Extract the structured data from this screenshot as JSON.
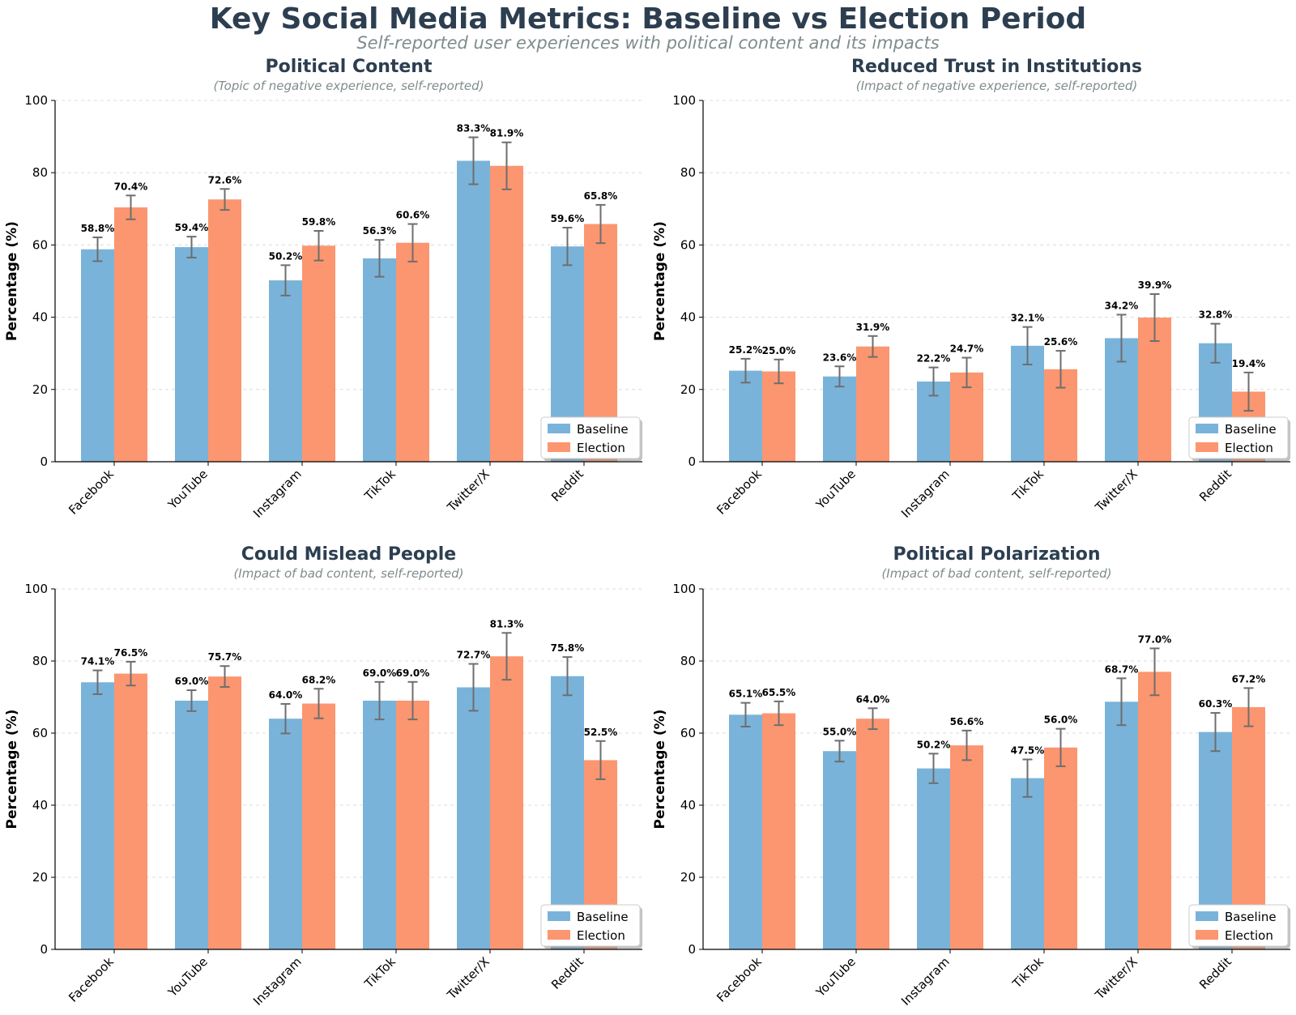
{
  "title": "Key Social Media Metrics: Baseline vs Election Period",
  "subtitle": "Self-reported user experiences with political content and its impacts",
  "colors": {
    "baseline": "#7ab3d9",
    "election": "#fb9670",
    "error_bar": "#6e6e6e",
    "grid": "#dcdcdc",
    "title": "#2c3e50",
    "note": "#7f8c8d"
  },
  "chart_data": [
    {
      "type": "bar",
      "title": "Political Content",
      "subtitle": "(Topic of negative experience, self-reported)",
      "categories": [
        "Facebook",
        "YouTube",
        "Instagram",
        "TikTok",
        "Twitter/X",
        "Reddit"
      ],
      "series": [
        {
          "name": "Baseline",
          "values": [
            58.8,
            59.4,
            50.2,
            56.3,
            83.3,
            59.6
          ],
          "errors": [
            3.3,
            2.9,
            4.2,
            5.1,
            6.5,
            5.2
          ]
        },
        {
          "name": "Election",
          "values": [
            70.4,
            72.6,
            59.8,
            60.6,
            81.9,
            65.8
          ],
          "errors": [
            3.3,
            2.9,
            4.1,
            5.2,
            6.5,
            5.3
          ]
        }
      ],
      "data_labels": [
        [
          "58.8%",
          "59.4%",
          "50.2%",
          "56.3%",
          "83.3%",
          "59.6%"
        ],
        [
          "70.4%",
          "72.6%",
          "59.8%",
          "60.6%",
          "81.9%",
          "65.8%"
        ]
      ],
      "ylabel": "Percentage (%)",
      "ylim": [
        0,
        100
      ],
      "yticks": [
        "0",
        "20",
        "40",
        "60",
        "80",
        "100"
      ],
      "grid": true,
      "legend": "bottom-right"
    },
    {
      "type": "bar",
      "title": "Reduced Trust in Institutions",
      "subtitle": "(Impact of negative experience, self-reported)",
      "categories": [
        "Facebook",
        "YouTube",
        "Instagram",
        "TikTok",
        "Twitter/X",
        "Reddit"
      ],
      "series": [
        {
          "name": "Baseline",
          "values": [
            25.2,
            23.6,
            22.2,
            32.1,
            34.2,
            32.8
          ],
          "errors": [
            3.3,
            2.8,
            3.9,
            5.2,
            6.5,
            5.4
          ]
        },
        {
          "name": "Election",
          "values": [
            25.0,
            31.9,
            24.7,
            25.6,
            39.9,
            19.4
          ],
          "errors": [
            3.3,
            2.9,
            4.1,
            5.1,
            6.5,
            5.3
          ]
        }
      ],
      "data_labels": [
        [
          "25.2%",
          "23.6%",
          "22.2%",
          "32.1%",
          "34.2%",
          "32.8%"
        ],
        [
          "25.0%",
          "31.9%",
          "24.7%",
          "25.6%",
          "39.9%",
          "19.4%"
        ]
      ],
      "ylabel": "Percentage (%)",
      "ylim": [
        0,
        100
      ],
      "yticks": [
        "0",
        "20",
        "40",
        "60",
        "80",
        "100"
      ],
      "grid": true,
      "legend": "bottom-right"
    },
    {
      "type": "bar",
      "title": "Could Mislead People",
      "subtitle": "(Impact of bad content, self-reported)",
      "categories": [
        "Facebook",
        "YouTube",
        "Instagram",
        "TikTok",
        "Twitter/X",
        "Reddit"
      ],
      "series": [
        {
          "name": "Baseline",
          "values": [
            74.1,
            69.0,
            64.0,
            69.0,
            72.7,
            75.8
          ],
          "errors": [
            3.3,
            2.9,
            4.1,
            5.2,
            6.5,
            5.3
          ]
        },
        {
          "name": "Election",
          "values": [
            76.5,
            75.7,
            68.2,
            69.0,
            81.3,
            52.5
          ],
          "errors": [
            3.3,
            2.9,
            4.1,
            5.2,
            6.5,
            5.3
          ]
        }
      ],
      "data_labels": [
        [
          "74.1%",
          "69.0%",
          "64.0%",
          "69.0%",
          "72.7%",
          "75.8%"
        ],
        [
          "76.5%",
          "75.7%",
          "68.2%",
          "69.0%",
          "81.3%",
          "52.5%"
        ]
      ],
      "ylabel": "Percentage (%)",
      "ylim": [
        0,
        100
      ],
      "yticks": [
        "0",
        "20",
        "40",
        "60",
        "80",
        "100"
      ],
      "grid": true,
      "legend": "bottom-right"
    },
    {
      "type": "bar",
      "title": "Political Polarization",
      "subtitle": "(Impact of bad content, self-reported)",
      "categories": [
        "Facebook",
        "YouTube",
        "Instagram",
        "TikTok",
        "Twitter/X",
        "Reddit"
      ],
      "series": [
        {
          "name": "Baseline",
          "values": [
            65.1,
            55.0,
            50.2,
            47.5,
            68.7,
            60.3
          ],
          "errors": [
            3.3,
            2.9,
            4.1,
            5.2,
            6.5,
            5.3
          ]
        },
        {
          "name": "Election",
          "values": [
            65.5,
            64.0,
            56.6,
            56.0,
            77.0,
            67.2
          ],
          "errors": [
            3.3,
            2.9,
            4.1,
            5.2,
            6.5,
            5.3
          ]
        }
      ],
      "data_labels": [
        [
          "65.1%",
          "55.0%",
          "50.2%",
          "47.5%",
          "68.7%",
          "60.3%"
        ],
        [
          "65.5%",
          "64.0%",
          "56.6%",
          "56.0%",
          "77.0%",
          "67.2%"
        ]
      ],
      "ylabel": "Percentage (%)",
      "ylim": [
        0,
        100
      ],
      "yticks": [
        "0",
        "20",
        "40",
        "60",
        "80",
        "100"
      ],
      "grid": true,
      "legend": "bottom-right"
    }
  ]
}
